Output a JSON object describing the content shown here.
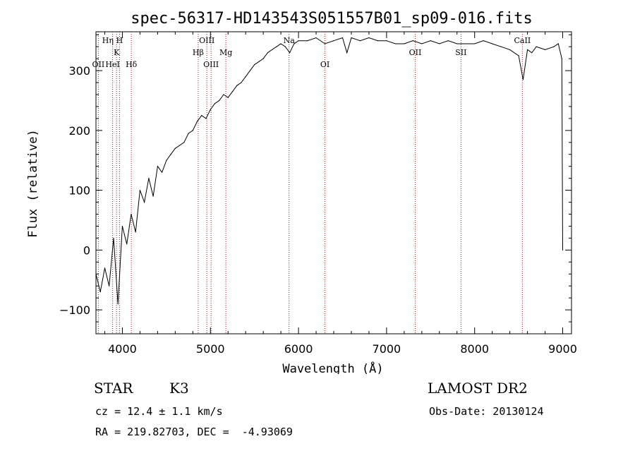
{
  "chart_data": {
    "type": "line",
    "title": "spec-56317-HD143543S051557B01_sp09-016.fits",
    "xlabel": "Wavelength (Å)",
    "ylabel": "Flux (relative)",
    "xlim": [
      3700,
      9100
    ],
    "ylim": [
      -140,
      365
    ],
    "x_ticks": [
      4000,
      5000,
      6000,
      7000,
      8000,
      9000
    ],
    "y_ticks": [
      -100,
      0,
      100,
      200,
      300
    ],
    "grid": false,
    "series": [
      {
        "x": [
          3700,
          3750,
          3800,
          3850,
          3900,
          3950,
          4000,
          4050,
          4100,
          4150,
          4200,
          4250,
          4300,
          4350,
          4400,
          4450,
          4500,
          4550,
          4600,
          4650,
          4700,
          4750,
          4800,
          4850,
          4900,
          4950,
          5000,
          5050,
          5100,
          5150,
          5200,
          5250,
          5300,
          5350,
          5400,
          5450,
          5500,
          5550,
          5600,
          5650,
          5700,
          5750,
          5800,
          5850,
          5900,
          5950,
          6000,
          6100,
          6200,
          6300,
          6400,
          6500,
          6550,
          6600,
          6700,
          6800,
          6900,
          7000,
          7100,
          7200,
          7300,
          7400,
          7500,
          7600,
          7700,
          7800,
          7900,
          8000,
          8100,
          8200,
          8300,
          8400,
          8500,
          8550,
          8600,
          8650,
          8700,
          8800,
          8900,
          8950,
          8990,
          9000
        ],
        "y": [
          -40,
          -70,
          -30,
          -60,
          20,
          -90,
          40,
          10,
          60,
          30,
          100,
          80,
          120,
          90,
          140,
          130,
          150,
          160,
          170,
          175,
          180,
          195,
          200,
          215,
          225,
          220,
          235,
          245,
          250,
          260,
          255,
          265,
          275,
          280,
          290,
          300,
          310,
          315,
          320,
          330,
          335,
          340,
          345,
          340,
          330,
          345,
          350,
          350,
          355,
          345,
          350,
          355,
          330,
          355,
          350,
          355,
          350,
          350,
          345,
          345,
          350,
          345,
          350,
          345,
          350,
          345,
          345,
          345,
          350,
          345,
          340,
          335,
          325,
          285,
          335,
          330,
          340,
          335,
          340,
          345,
          320,
          0
        ]
      }
    ],
    "line_labels": [
      {
        "text": "Hη",
        "x": 3835,
        "row": 0
      },
      {
        "text": "H",
        "x": 3968,
        "row": 0
      },
      {
        "text": "K",
        "x": 3934,
        "row": 1
      },
      {
        "text": "OII",
        "x": 3727,
        "row": 2
      },
      {
        "text": "HeI",
        "x": 3889,
        "row": 2
      },
      {
        "text": "Hδ",
        "x": 4102,
        "row": 2
      },
      {
        "text": "OIII",
        "x": 4959,
        "row": 0
      },
      {
        "text": "Hβ",
        "x": 4861,
        "row": 1
      },
      {
        "text": "Mg",
        "x": 5175,
        "row": 1
      },
      {
        "text": "OIII",
        "x": 5007,
        "row": 2
      },
      {
        "text": "Na",
        "x": 5893,
        "row": 0
      },
      {
        "text": "OI",
        "x": 6300,
        "row": 2
      },
      {
        "text": "OII",
        "x": 7325,
        "row": 1
      },
      {
        "text": "SII",
        "x": 7845,
        "row": 1
      },
      {
        "text": "CaII",
        "x": 8542,
        "row": 0
      }
    ],
    "line_marks": [
      3727,
      3889,
      3934,
      3968,
      4102,
      4861,
      4959,
      5007,
      5175,
      5893,
      6300,
      7325,
      7845,
      8542
    ]
  },
  "info": {
    "star_label": "STAR",
    "spectral_class": "K3",
    "survey": "LAMOST DR2",
    "cz": "cz = 12.4 ± 1.1 km/s",
    "obs_date": "Obs-Date: 20130124",
    "coords": "RA = 219.82703, DEC =  -4.93069"
  }
}
